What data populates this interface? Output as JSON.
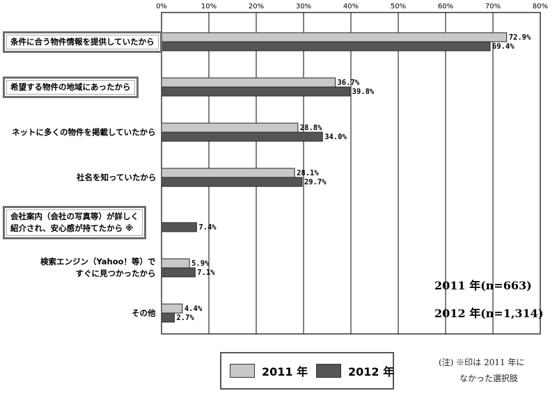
{
  "chart_data": {
    "type": "bar",
    "orientation": "horizontal",
    "categories": [
      "条件に合う物件情報を提供していたから",
      "希望する物件の地域にあったから",
      "ネットに多くの物件を掲載していたから",
      "社名を知っていたから",
      "会社案内（会社の写真等）が詳しく紹介され、安心感が持てたから ※",
      "検索エンジン（Yahoo！等）ですぐに見つかったから",
      "その他"
    ],
    "category_lines": [
      [
        "条件に合う物件情報を提供していたから"
      ],
      [
        "希望する物件の地域にあったから"
      ],
      [
        "ネットに多くの物件を掲載していたから"
      ],
      [
        "社名を知っていたから"
      ],
      [
        "会社案内（会社の写真等）が詳しく",
        "紹介され、安心感が持てたから ※"
      ],
      [
        "検索エンジン（Yahoo！等）で",
        "すぐに見つかったから"
      ],
      [
        "その他"
      ]
    ],
    "highlighted": [
      true,
      true,
      false,
      false,
      true,
      false,
      false
    ],
    "series": [
      {
        "name": "2011 年",
        "values": [
          72.9,
          36.7,
          28.8,
          28.1,
          null,
          5.9,
          4.4
        ],
        "labels": [
          "72.9%",
          "36.7%",
          "28.8%",
          "28.1%",
          "",
          "5.9%",
          "4.4%"
        ]
      },
      {
        "name": "2012 年",
        "values": [
          69.4,
          39.8,
          34.0,
          29.7,
          7.4,
          7.1,
          2.7
        ],
        "labels": [
          "69.4%",
          "39.8%",
          "34.0%",
          "29.7%",
          "7.4%",
          "7.1%",
          "2.7%"
        ]
      }
    ],
    "xlim": [
      0,
      80
    ],
    "xticks": [
      "0%",
      "10%",
      "20%",
      "30%",
      "40%",
      "50%",
      "60%",
      "70%",
      "80%"
    ],
    "grid": true,
    "legend_position": "bottom-center",
    "colors": {
      "2011": "#c8c8c8",
      "2012": "#555555"
    }
  },
  "notes": {
    "n2011": "2011 年(n=663)",
    "n2012": "2012 年(n=1,314)",
    "footnote_line1": "(注) ※印は 2011 年に",
    "footnote_line2": "なかった選択肢"
  },
  "legend": {
    "item1": "2011 年",
    "item2": "2012 年"
  }
}
